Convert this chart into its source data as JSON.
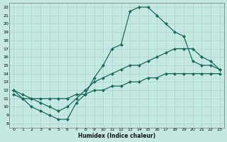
{
  "xlabel": "Humidex (Indice chaleur)",
  "ylabel": "",
  "xlim": [
    -0.5,
    23.5
  ],
  "ylim": [
    7.5,
    22.5
  ],
  "xticks": [
    0,
    1,
    2,
    3,
    4,
    5,
    6,
    7,
    8,
    9,
    10,
    11,
    12,
    13,
    14,
    15,
    16,
    17,
    18,
    19,
    20,
    21,
    22,
    23
  ],
  "yticks": [
    8,
    9,
    10,
    11,
    12,
    13,
    14,
    15,
    16,
    17,
    18,
    19,
    20,
    21,
    22
  ],
  "bg_color": "#c5e8e2",
  "grid_color": "#a0ccca",
  "line_color": "#1a6b5a",
  "line1_x": [
    0,
    1,
    2,
    3,
    4,
    5,
    6,
    7,
    8,
    9,
    10,
    11,
    12,
    13,
    14,
    15,
    16,
    17,
    18,
    19,
    20,
    21,
    22,
    23
  ],
  "line1_y": [
    12,
    11,
    10,
    9.5,
    9,
    8.5,
    8.5,
    10.5,
    11.5,
    13.5,
    15,
    17,
    17.5,
    21.5,
    22,
    22,
    21,
    20,
    19,
    18.5,
    15.5,
    15,
    15,
    14.5
  ],
  "line2_x": [
    0,
    1,
    2,
    3,
    4,
    5,
    6,
    7,
    8,
    9,
    10,
    11,
    12,
    13,
    14,
    15,
    16,
    17,
    18,
    19,
    20,
    21,
    22,
    23
  ],
  "line2_y": [
    12,
    11.5,
    11,
    10.5,
    10,
    9.5,
    10,
    11,
    12,
    13,
    13.5,
    14,
    14.5,
    15,
    15,
    15.5,
    16,
    16.5,
    17,
    17,
    17,
    16,
    15.5,
    14.5
  ],
  "line3_x": [
    0,
    1,
    2,
    3,
    4,
    5,
    6,
    7,
    8,
    9,
    10,
    11,
    12,
    13,
    14,
    15,
    16,
    17,
    18,
    19,
    20,
    21,
    22,
    23
  ],
  "line3_y": [
    11.5,
    11,
    11,
    11,
    11,
    11,
    11,
    11.5,
    11.5,
    12,
    12,
    12.5,
    12.5,
    13,
    13,
    13.5,
    13.5,
    14,
    14,
    14,
    14,
    14,
    14,
    14
  ],
  "marker": "D",
  "markersize": 2,
  "linewidth": 0.9
}
